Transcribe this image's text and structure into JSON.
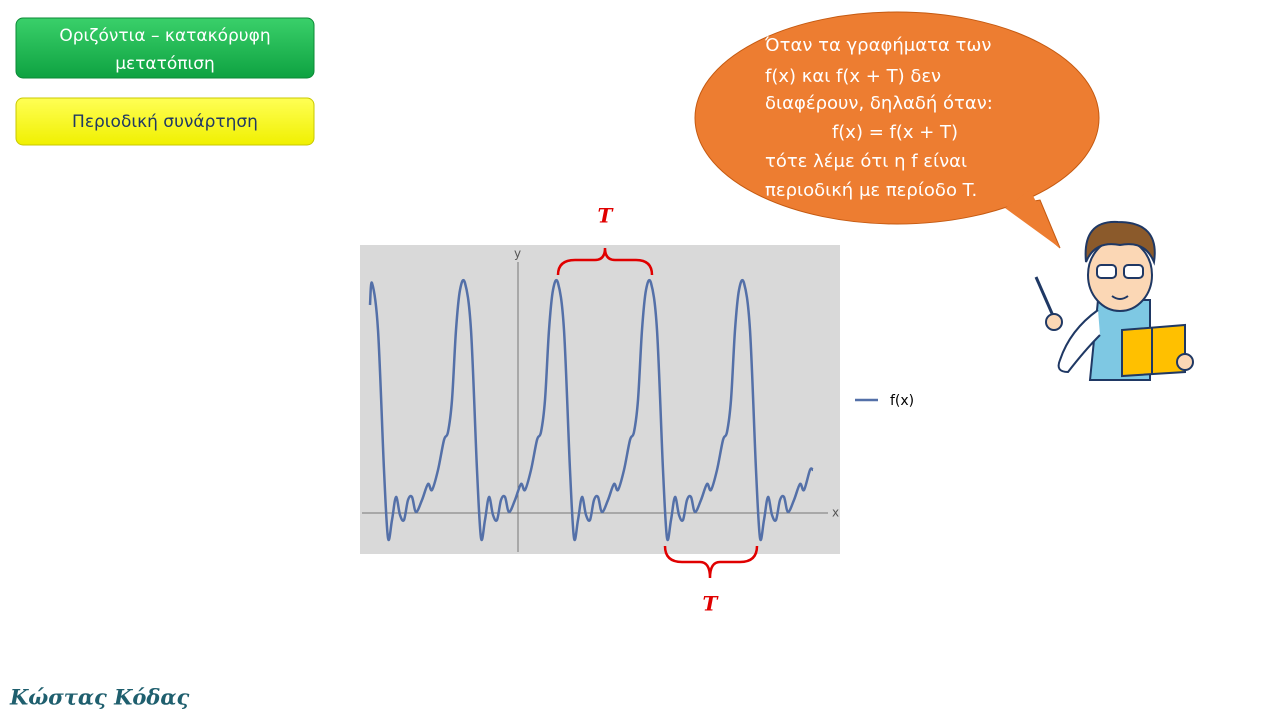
{
  "buttons": [
    "Οριζόντια – κατακόρυφη μετατόπιση",
    "Περιοδική συνάρτηση"
  ],
  "graph": {
    "y_label": "y",
    "x_label": "x",
    "legend": "f(x)",
    "period_top": "T",
    "period_bottom": "T"
  },
  "speech_bubble": {
    "lines": [
      "Όταν τα γραφήματα των",
      "f(x) και f(x + T) δεν",
      "διαφέρουν, δηλαδή όταν:",
      "f(x) = f(x + T)",
      "τότε λέμε ότι η f είναι",
      "περιοδική με περίοδο T."
    ]
  },
  "footer": "Κώστας Κόδας"
}
